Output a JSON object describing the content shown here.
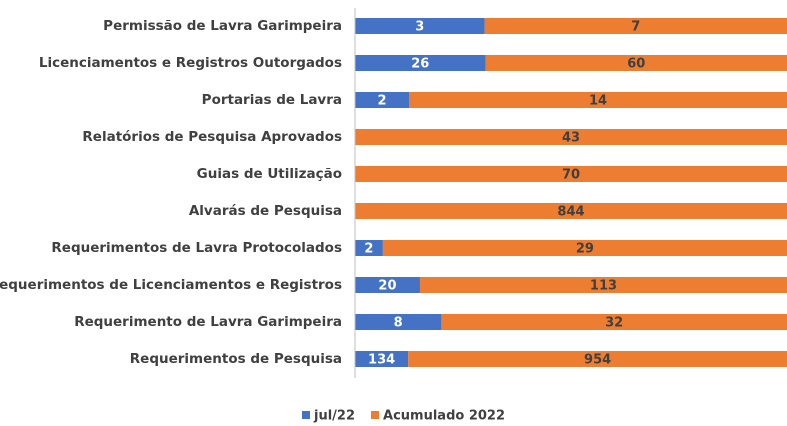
{
  "chart_data": {
    "type": "bar",
    "orientation": "horizontal",
    "stacked": "percent",
    "categories": [
      "Permissão de Lavra Garimpeira",
      "Licenciamentos e Registros Outorgados",
      "Portarias de Lavra",
      "Relatórios de Pesquisa Aprovados",
      "Guias de Utilização",
      "Alvarás de Pesquisa",
      "Requerimentos de Lavra Protocolados",
      "Requerimentos de Licenciamentos e Registros",
      "Requerimento de Lavra Garimpeira",
      "Requerimentos de Pesquisa"
    ],
    "series": [
      {
        "name": "jul/22",
        "color": "#4472c4",
        "values": [
          3,
          26,
          2,
          0,
          0,
          0,
          2,
          20,
          8,
          134
        ],
        "value_labels": [
          "3",
          "26",
          "2",
          "-",
          "-",
          "-",
          "2",
          "20",
          "8",
          "134"
        ]
      },
      {
        "name": "Acumulado 2022",
        "color": "#ed7d31",
        "values": [
          7,
          60,
          14,
          43,
          70,
          844,
          29,
          113,
          32,
          954
        ]
      }
    ],
    "legend": "bottom"
  }
}
